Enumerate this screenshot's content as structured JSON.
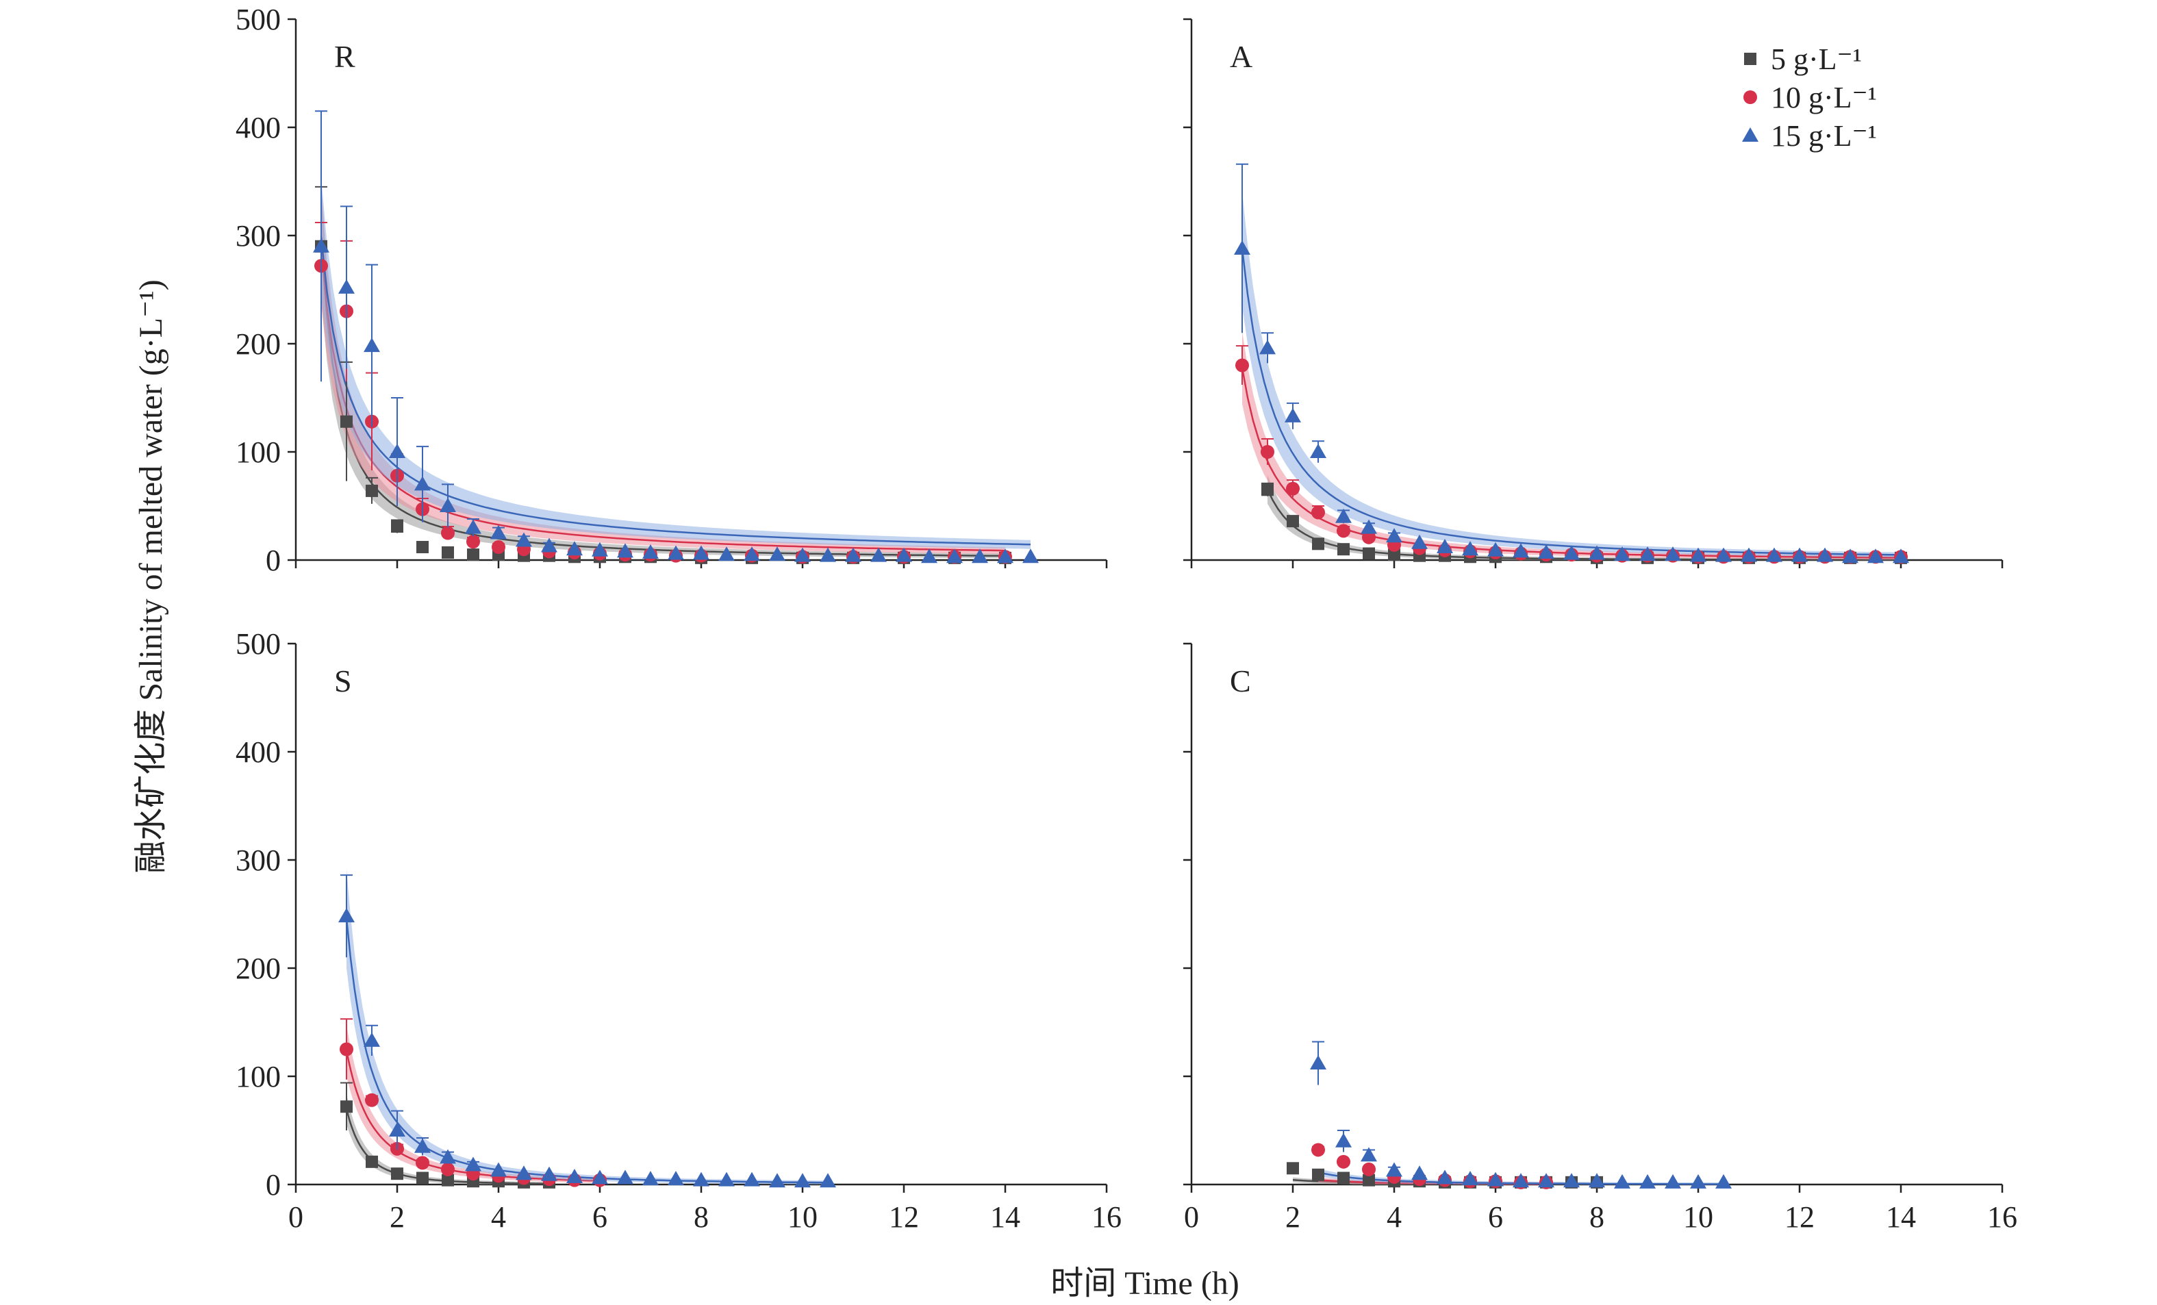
{
  "figure": {
    "ylabel": "融水矿化度 Salinity of melted water (g·L⁻¹)",
    "xlabel": "时间 Time (h)"
  },
  "legend": {
    "placement": "top-right of panel A",
    "entries": [
      {
        "label": "5 g·L⁻¹",
        "marker": "square",
        "color": "#4a4a4a"
      },
      {
        "label": "10 g·L⁻¹",
        "marker": "circle",
        "color": "#d6304a"
      },
      {
        "label": "15 g·L⁻¹",
        "marker": "triangle",
        "color": "#3a66b8"
      }
    ]
  },
  "colors": {
    "series_5": "#4a4a4a",
    "series_10": "#d6304a",
    "series_15": "#3a66b8",
    "band_5": "#9a9a9a",
    "band_10": "#ef8f9c",
    "band_15": "#8fb0e2",
    "axis": "#222222"
  },
  "chart_data": [
    {
      "type": "scatter",
      "panel_label": "R",
      "xlim": [
        0,
        16
      ],
      "ylim": [
        0,
        500
      ],
      "xticks": [
        0,
        2,
        4,
        6,
        8,
        10,
        12,
        14,
        16
      ],
      "yticks": [
        0,
        100,
        200,
        300,
        400,
        500
      ],
      "grid": false,
      "series": [
        {
          "name": "5 g·L⁻¹",
          "x": [
            0.5,
            1.0,
            1.5,
            2.0,
            2.5,
            3.0,
            3.5,
            4.0,
            4.5,
            5.0,
            5.5,
            6.0,
            6.5,
            7.0,
            8.0,
            9.0,
            10.0,
            11.0,
            12.0,
            13.0,
            14.0
          ],
          "y": [
            290,
            128,
            64,
            31,
            12,
            7,
            5,
            5,
            4,
            4,
            3,
            3,
            3,
            3,
            2,
            2,
            2,
            2,
            2,
            2,
            2
          ],
          "err": [
            55,
            55,
            12,
            6,
            3,
            2,
            1,
            1,
            1,
            1,
            1,
            1,
            1,
            1,
            1,
            1,
            1,
            1,
            1,
            1,
            1
          ],
          "fit": {
            "a": 120,
            "b": 1.3
          }
        },
        {
          "name": "10 g·L⁻¹",
          "x": [
            0.5,
            1.0,
            1.5,
            2.0,
            2.5,
            3.0,
            3.5,
            4.0,
            4.5,
            5.0,
            5.5,
            6.0,
            6.5,
            7.0,
            7.5,
            8.0,
            9.0,
            10.0,
            11.0,
            12.0,
            13.0,
            14.0
          ],
          "y": [
            272,
            230,
            128,
            78,
            47,
            25,
            17,
            12,
            10,
            8,
            7,
            6,
            5,
            5,
            4,
            4,
            4,
            3,
            3,
            3,
            3,
            3
          ],
          "err": [
            40,
            65,
            45,
            20,
            10,
            6,
            4,
            3,
            2,
            2,
            2,
            1,
            1,
            1,
            1,
            1,
            1,
            1,
            1,
            1,
            1,
            1
          ],
          "fit": {
            "a": 140,
            "b": 1.05
          }
        },
        {
          "name": "15 g·L⁻¹",
          "x": [
            0.5,
            1.0,
            1.5,
            2.0,
            2.5,
            3.0,
            3.5,
            4.0,
            4.5,
            5.0,
            5.5,
            6.0,
            6.5,
            7.0,
            7.5,
            8.0,
            8.5,
            9.0,
            9.5,
            10.0,
            10.5,
            11.0,
            11.5,
            12.0,
            12.5,
            13.0,
            13.5,
            14.0,
            14.5
          ],
          "y": [
            290,
            252,
            198,
            100,
            70,
            50,
            30,
            25,
            18,
            13,
            10,
            9,
            8,
            7,
            6,
            6,
            5,
            5,
            5,
            4,
            4,
            4,
            4,
            4,
            3,
            3,
            3,
            3,
            3
          ],
          "err": [
            125,
            75,
            75,
            50,
            35,
            20,
            8,
            5,
            4,
            3,
            2,
            2,
            2,
            2,
            1,
            1,
            1,
            1,
            1,
            1,
            1,
            1,
            1,
            1,
            1,
            1,
            1,
            1,
            1
          ],
          "fit": {
            "a": 160,
            "b": 0.9
          }
        }
      ]
    },
    {
      "type": "scatter",
      "panel_label": "A",
      "xlim": [
        0,
        16
      ],
      "ylim": [
        0,
        500
      ],
      "xticks": [
        0,
        2,
        4,
        6,
        8,
        10,
        12,
        14,
        16
      ],
      "yticks": [
        0,
        100,
        200,
        300,
        400,
        500
      ],
      "grid": false,
      "series": [
        {
          "name": "5 g·L⁻¹",
          "x": [
            1.5,
            2.0,
            2.5,
            3.0,
            3.5,
            4.0,
            4.5,
            5.0,
            5.5,
            6.0,
            7.0,
            8.0,
            9.0,
            10.0,
            11.0,
            12.0,
            13.0,
            14.0
          ],
          "y": [
            65,
            36,
            15,
            10,
            6,
            5,
            4,
            4,
            3,
            3,
            3,
            2,
            2,
            2,
            2,
            2,
            2,
            2
          ],
          "err": [
            6,
            4,
            3,
            2,
            1,
            1,
            1,
            1,
            1,
            1,
            1,
            1,
            1,
            1,
            1,
            1,
            1,
            1
          ],
          "fit": {
            "a": 180,
            "b": 2.5
          }
        },
        {
          "name": "10 g·L⁻¹",
          "x": [
            1.0,
            1.5,
            2.0,
            2.5,
            3.0,
            3.5,
            4.0,
            4.5,
            5.0,
            5.5,
            6.0,
            6.5,
            7.0,
            7.5,
            8.0,
            8.5,
            9.0,
            9.5,
            10.0,
            10.5,
            11.0,
            11.5,
            12.0,
            12.5,
            13.0,
            13.5,
            14.0
          ],
          "y": [
            180,
            100,
            66,
            44,
            27,
            21,
            14,
            11,
            9,
            8,
            7,
            6,
            5,
            5,
            4,
            4,
            4,
            4,
            3,
            3,
            3,
            3,
            3,
            3,
            3,
            3,
            3
          ],
          "err": [
            18,
            12,
            8,
            6,
            4,
            3,
            2,
            2,
            1,
            1,
            1,
            1,
            1,
            1,
            1,
            1,
            1,
            1,
            1,
            1,
            1,
            1,
            1,
            1,
            1,
            1,
            1
          ],
          "fit": {
            "a": 178,
            "b": 1.65
          }
        },
        {
          "name": "15 g·L⁻¹",
          "x": [
            1.0,
            1.5,
            2.0,
            2.5,
            3.0,
            3.5,
            4.0,
            4.5,
            5.0,
            5.5,
            6.0,
            6.5,
            7.0,
            7.5,
            8.0,
            8.5,
            9.0,
            9.5,
            10.0,
            10.5,
            11.0,
            11.5,
            12.0,
            12.5,
            13.0,
            13.5,
            14.0
          ],
          "y": [
            288,
            196,
            133,
            100,
            40,
            30,
            22,
            16,
            12,
            10,
            9,
            8,
            7,
            6,
            6,
            5,
            5,
            5,
            4,
            4,
            4,
            4,
            4,
            4,
            3,
            3,
            3
          ],
          "err": [
            78,
            14,
            12,
            10,
            6,
            4,
            3,
            2,
            2,
            1,
            1,
            1,
            1,
            1,
            1,
            1,
            1,
            1,
            1,
            1,
            1,
            1,
            1,
            1,
            1,
            1,
            1
          ],
          "fit": {
            "a": 288,
            "b": 1.55
          }
        }
      ]
    },
    {
      "type": "scatter",
      "panel_label": "S",
      "xlim": [
        0,
        16
      ],
      "ylim": [
        0,
        500
      ],
      "xticks": [
        0,
        2,
        4,
        6,
        8,
        10,
        12,
        14,
        16
      ],
      "yticks": [
        0,
        100,
        200,
        300,
        400,
        500
      ],
      "grid": false,
      "series": [
        {
          "name": "5 g·L⁻¹",
          "x": [
            1.0,
            1.5,
            2.0,
            2.5,
            3.0,
            3.5,
            4.0,
            4.5,
            5.0
          ],
          "y": [
            72,
            21,
            10,
            6,
            4,
            3,
            3,
            2,
            2
          ],
          "err": [
            22,
            3,
            2,
            1,
            1,
            1,
            1,
            1,
            1
          ],
          "fit": {
            "a": 70,
            "b": 2.8
          }
        },
        {
          "name": "10 g·L⁻¹",
          "x": [
            1.0,
            1.5,
            2.0,
            2.5,
            3.0,
            3.5,
            4.0,
            4.5,
            5.0,
            5.5,
            6.0
          ],
          "y": [
            125,
            78,
            33,
            20,
            14,
            10,
            8,
            6,
            5,
            4,
            4
          ],
          "err": [
            28,
            4,
            4,
            3,
            2,
            1,
            1,
            1,
            1,
            1,
            1
          ],
          "fit": {
            "a": 124,
            "b": 2.0
          }
        },
        {
          "name": "15 g·L⁻¹",
          "x": [
            1.0,
            1.5,
            2.0,
            2.5,
            3.0,
            3.5,
            4.0,
            4.5,
            5.0,
            5.5,
            6.0,
            6.5,
            7.0,
            7.5,
            8.0,
            8.5,
            9.0,
            9.5,
            10.0,
            10.5
          ],
          "y": [
            248,
            133,
            50,
            35,
            25,
            18,
            13,
            10,
            9,
            7,
            6,
            6,
            5,
            5,
            4,
            4,
            4,
            3,
            3,
            3
          ],
          "err": [
            38,
            14,
            18,
            8,
            5,
            3,
            2,
            2,
            1,
            1,
            1,
            1,
            1,
            1,
            1,
            1,
            1,
            1,
            1,
            1
          ],
          "fit": {
            "a": 246,
            "b": 2.1
          }
        }
      ]
    },
    {
      "type": "scatter",
      "panel_label": "C",
      "xlim": [
        0,
        16
      ],
      "ylim": [
        0,
        500
      ],
      "xticks": [
        0,
        2,
        4,
        6,
        8,
        10,
        12,
        14,
        16
      ],
      "yticks": [
        0,
        100,
        200,
        300,
        400,
        500
      ],
      "grid": false,
      "series": [
        {
          "name": "5 g·L⁻¹",
          "x": [
            2.0,
            2.5,
            3.0,
            3.5,
            4.0,
            4.5,
            5.0,
            5.5,
            6.0,
            6.5,
            7.0,
            7.5,
            8.0
          ],
          "y": [
            15,
            9,
            6,
            4,
            3,
            3,
            2,
            2,
            2,
            2,
            2,
            2,
            2
          ],
          "err": [
            2,
            1,
            1,
            1,
            1,
            1,
            1,
            1,
            1,
            1,
            1,
            1,
            1
          ],
          "fit": {
            "a": 15,
            "b": 1.8
          }
        },
        {
          "name": "10 g·L⁻¹",
          "x": [
            2.5,
            3.0,
            3.5,
            4.0,
            4.5,
            5.0,
            5.5,
            6.0,
            6.5,
            7.0
          ],
          "y": [
            32,
            21,
            14,
            7,
            5,
            4,
            3,
            3,
            2,
            2
          ],
          "err": [
            3,
            2,
            2,
            1,
            1,
            1,
            1,
            1,
            1,
            1
          ],
          "fit": {
            "a": 32,
            "b": 2.2
          }
        },
        {
          "name": "15 g·L⁻¹",
          "x": [
            2.5,
            3.0,
            3.5,
            4.0,
            4.5,
            5.0,
            5.5,
            6.0,
            6.5,
            7.0,
            7.5,
            8.0,
            8.5,
            9.0,
            9.5,
            10.0,
            10.5
          ],
          "y": [
            112,
            40,
            27,
            13,
            10,
            6,
            5,
            4,
            3,
            3,
            3,
            3,
            2,
            2,
            2,
            2,
            2
          ],
          "err": [
            20,
            10,
            5,
            3,
            2,
            1,
            1,
            1,
            1,
            1,
            1,
            1,
            1,
            1,
            1,
            1,
            1
          ],
          "fit": {
            "a": 112,
            "b": 2.5
          }
        }
      ]
    }
  ]
}
